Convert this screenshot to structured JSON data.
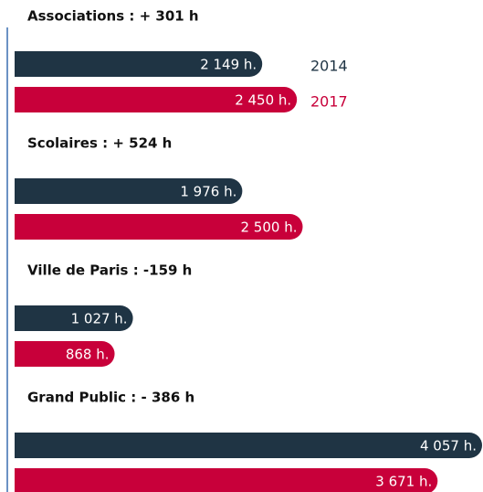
{
  "chart_data": {
    "type": "bar",
    "orientation": "horizontal",
    "categories": [
      "Associations : + 301 h",
      "Scolaires : + 524 h",
      "Ville de Paris : -159 h",
      "Grand Public : - 386 h"
    ],
    "series": [
      {
        "name": "2014",
        "color": "#1f3444",
        "values": [
          2149,
          1976,
          1027,
          4057
        ],
        "value_labels": [
          "2 149 h.",
          "1 976 h.",
          "1 027 h.",
          "4 057 h."
        ]
      },
      {
        "name": "2017",
        "color": "#c8003a",
        "values": [
          2450,
          2500,
          868,
          3671
        ],
        "value_labels": [
          "2 450 h.",
          "2 500 h.",
          "868 h.",
          "3 671 h."
        ]
      }
    ]
  }
}
